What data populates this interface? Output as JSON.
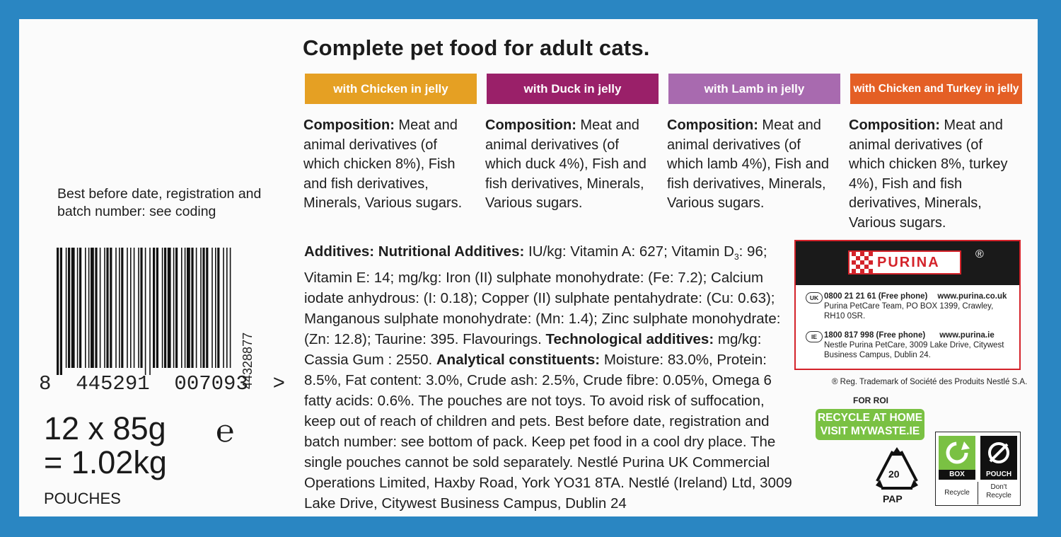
{
  "headline": "Complete pet food for adult cats.",
  "flavours": [
    {
      "label": "with Chicken in jelly",
      "color": "#e5a023"
    },
    {
      "label": "with Duck in jelly",
      "color": "#9a2069"
    },
    {
      "label": "with Lamb in jelly",
      "color": "#a86aaf"
    },
    {
      "label": "with Chicken and Turkey in jelly",
      "color": "#e45f25"
    }
  ],
  "compositions": [
    {
      "heading": "Composition:",
      "text": " Meat and animal derivatives (of which chicken 8%), Fish and fish derivatives, Minerals, Various sugars."
    },
    {
      "heading": "Composition:",
      "text": " Meat and animal derivatives (of which duck 4%), Fish and fish derivatives, Minerals, Various sugars."
    },
    {
      "heading": "Composition:",
      "text": " Meat and animal derivatives (of which lamb 4%), Fish and fish derivatives, Minerals, Various sugars."
    },
    {
      "heading": "Composition:",
      "text": " Meat and animal derivatives (of which chicken 8%, turkey 4%), Fish and fish derivatives, Minerals, Various sugars."
    }
  ],
  "best_before_note": "Best before date, registration and batch number: see coding",
  "barcode": {
    "digits": "8  445291  007093  >",
    "vertical_code": "44328877"
  },
  "quantity": {
    "line1": "12 x 85g",
    "line2": "= 1.02kg",
    "estimate_mark": "℮",
    "unit": "POUCHES"
  },
  "additives": {
    "p1_bold": "Additives: Nutritional Additives:",
    "p1": " IU/kg: Vitamin A: 627; Vitamin D",
    "p1_sub": "3",
    "p2": ": 96; Vitamin E: 14; mg/kg: Iron (II) sulphate monohydrate: (Fe: 7.2); Calcium iodate anhydrous: (I: 0.18); Copper (II) sulphate pentahydrate: (Cu: 0.63); Manganous sulphate monohydrate: (Mn: 1.4); Zinc sulphate monohydrate: (Zn: 12.8); Taurine: 395. Flavourings. ",
    "p3_bold": "Technological additives:",
    "p3": " mg/kg: Cassia Gum : 2550. ",
    "p4_bold": "Analytical constituents:",
    "p4": " Moisture: 83.0%, Protein: 8.5%, Fat content: 3.0%, Crude ash: 2.5%, Crude fibre: 0.05%, Omega 6 fatty acids: 0.6%. The pouches are not toys. To avoid risk of suffocation, keep out of reach of children and pets. Best before date, registration and batch number: see bottom of pack. Keep pet food in a cool dry place. The single pouches cannot be sold separately. Nestlé Purina UK Commercial Operations Limited, Haxby Road, York YO31 8TA. Nestlé (Ireland) Ltd, 3009 Lake Drive, Citywest Business Campus, Dublin 24"
  },
  "purina": {
    "brand": "PURINA",
    "reg_symbol": "®",
    "uk": {
      "badge": "UK",
      "phone": "0800 21 21 61 (Free phone)",
      "web": "www.purina.co.uk",
      "address": "Purina PetCare Team, PO BOX 1399, Crawley, RH10 0SR."
    },
    "ie": {
      "badge": "IE",
      "phone": "1800 817 998 (Free phone)",
      "web": "www.purina.ie",
      "address": "Nestle Purina PetCare, 3009 Lake Drive, Citywest Business Campus, Dublin 24."
    }
  },
  "trademark_note": "® Reg. Trademark of Société des Produits Nestlé S.A.",
  "recycle": {
    "for_roi": "FOR ROI",
    "line1": "RECYCLE AT HOME",
    "line2": "VISIT MYWASTE.IE",
    "pap_number": "20",
    "pap_label": "PAP",
    "box_label": "BOX",
    "box_text": "Recycle",
    "pouch_label": "POUCH",
    "pouch_text_1": "Don't",
    "pouch_text_2": "Recycle"
  },
  "colors": {
    "border_blue": "#2a86c2",
    "purina_red": "#d4232a",
    "recycle_green": "#7ac143"
  }
}
